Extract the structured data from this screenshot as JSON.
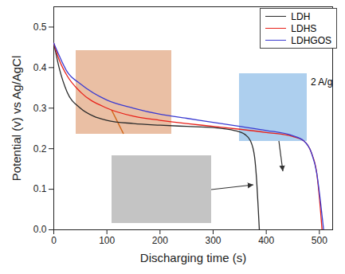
{
  "chart_data": {
    "type": "line",
    "x_label": "Discharging time (s)",
    "y_label": "Potential (v) vs Ag/AgCl",
    "annotations": [
      "2 A/g"
    ],
    "legend": "top-right",
    "xlim": [
      0,
      525
    ],
    "xticks": [
      0,
      100,
      200,
      300,
      400,
      500
    ],
    "ylim": [
      0,
      0.55
    ],
    "yticks": [
      {
        "value": 0,
        "label": "0.0"
      },
      0.1,
      0.2,
      0.3,
      0.4,
      0.5
    ],
    "series": [
      {
        "name": "LDH",
        "color": "#2b2b2b",
        "x": [
          0,
          10,
          25,
          50,
          75,
          100,
          150,
          200,
          250,
          300,
          340,
          360,
          370,
          378,
          382,
          385,
          387
        ],
        "values": [
          0.46,
          0.4,
          0.34,
          0.3,
          0.28,
          0.27,
          0.262,
          0.258,
          0.255,
          0.252,
          0.245,
          0.235,
          0.22,
          0.18,
          0.12,
          0.05,
          0.0
        ]
      },
      {
        "name": "LDHS",
        "color": "#e8211a",
        "x": [
          0,
          10,
          25,
          50,
          100,
          150,
          200,
          250,
          300,
          350,
          400,
          450,
          470,
          485,
          495,
          500,
          505
        ],
        "values": [
          0.46,
          0.42,
          0.38,
          0.34,
          0.3,
          0.28,
          0.27,
          0.262,
          0.255,
          0.248,
          0.24,
          0.23,
          0.22,
          0.19,
          0.14,
          0.08,
          0.0
        ]
      },
      {
        "name": "LDHGOS",
        "color": "#3b3bd1",
        "x": [
          0,
          10,
          25,
          50,
          100,
          150,
          200,
          250,
          300,
          350,
          400,
          450,
          470,
          485,
          495,
          502,
          508
        ],
        "values": [
          0.46,
          0.43,
          0.39,
          0.36,
          0.32,
          0.3,
          0.285,
          0.275,
          0.265,
          0.255,
          0.245,
          0.232,
          0.22,
          0.19,
          0.14,
          0.07,
          0.0
        ]
      }
    ]
  }
}
